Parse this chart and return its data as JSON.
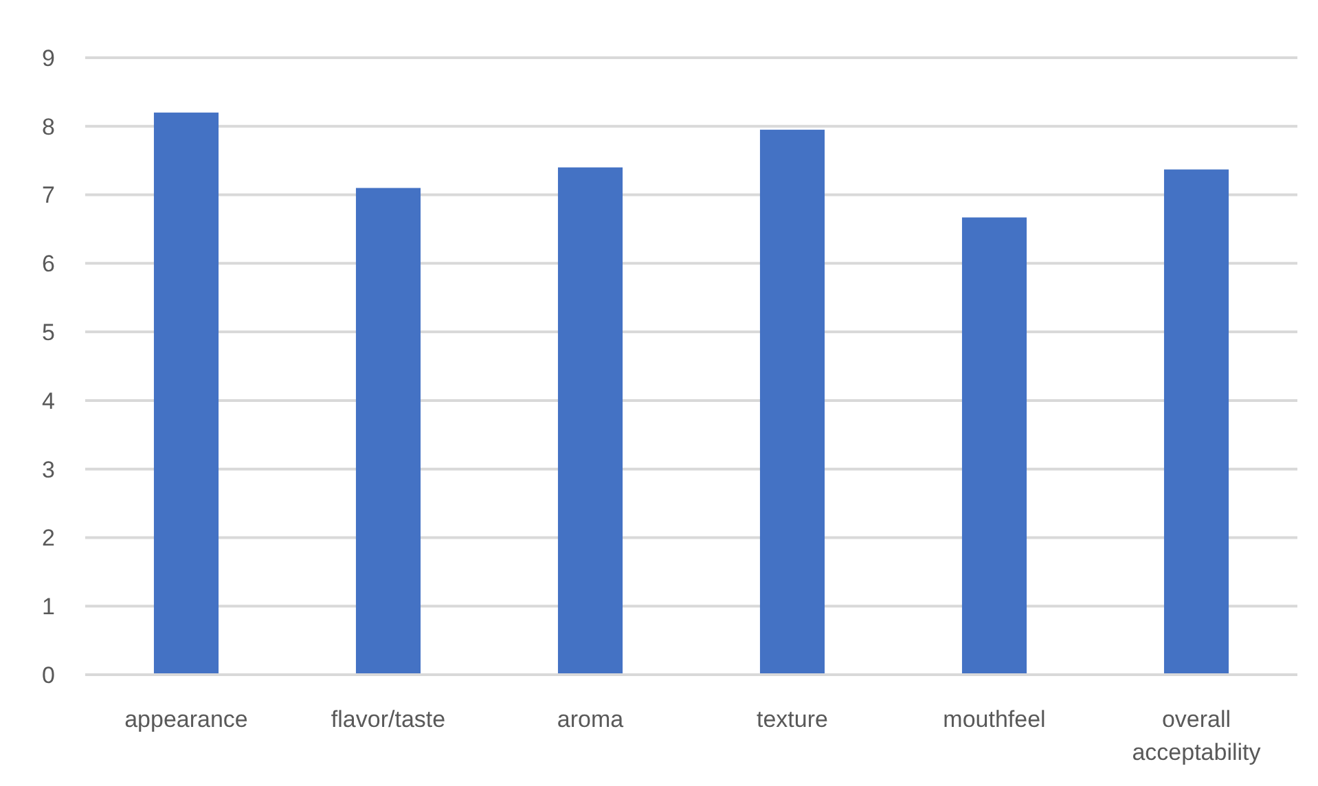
{
  "chart_data": {
    "type": "bar",
    "categories": [
      "appearance",
      "flavor/taste",
      "aroma",
      "texture",
      "mouthfeel",
      "overall acceptability"
    ],
    "values": [
      8.2,
      7.1,
      7.4,
      7.95,
      6.67,
      7.37
    ],
    "color": "#4472c4",
    "ylim": [
      0,
      9
    ],
    "yticks": [
      0,
      1,
      2,
      3,
      4,
      5,
      6,
      7,
      8,
      9
    ],
    "grid": "y"
  }
}
